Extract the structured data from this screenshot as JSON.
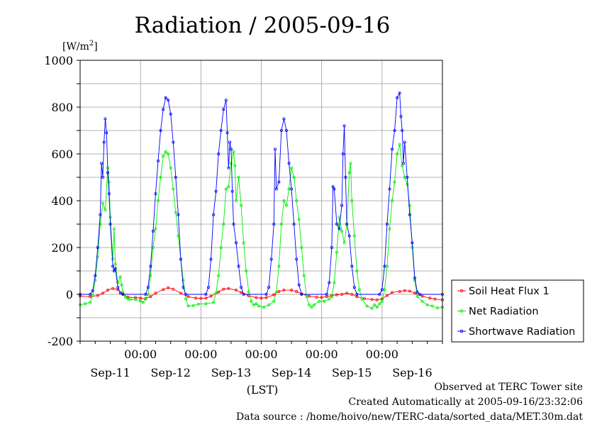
{
  "chart_data": {
    "type": "line",
    "title": "Radiation / 2005-09-16",
    "unit_label": "[W/m2]",
    "unit_base": "[W/m",
    "unit_sup": "2",
    "unit_close": "]",
    "xlabel": "(LST)",
    "ylim": [
      -200,
      1000
    ],
    "yticks": [
      -200,
      0,
      200,
      400,
      600,
      800,
      1000
    ],
    "xlim": [
      0,
      144
    ],
    "time_ticks": [
      {
        "x": 24,
        "time": "00:00"
      },
      {
        "x": 48,
        "time": "00:00"
      },
      {
        "x": 72,
        "time": "00:00"
      },
      {
        "x": 96,
        "time": "00:00"
      },
      {
        "x": 120,
        "time": "00:00"
      }
    ],
    "date_labels": [
      {
        "x": 12,
        "label": "Sep-11"
      },
      {
        "x": 36,
        "label": "Sep-12"
      },
      {
        "x": 60,
        "label": "Sep-13"
      },
      {
        "x": 84,
        "label": "Sep-14"
      },
      {
        "x": 108,
        "label": "Sep-15"
      },
      {
        "x": 132,
        "label": "Sep-16"
      }
    ],
    "grid": true,
    "legend_position": "right",
    "series": [
      {
        "name": "Soil Heat Flux 1",
        "color": "#ff0000",
        "points": [
          [
            0,
            -8
          ],
          [
            4,
            -10
          ],
          [
            7,
            -5
          ],
          [
            9,
            5
          ],
          [
            11,
            18
          ],
          [
            13,
            25
          ],
          [
            15,
            20
          ],
          [
            17,
            2
          ],
          [
            19,
            -12
          ],
          [
            22,
            -14
          ],
          [
            24,
            -16
          ],
          [
            26,
            -18
          ],
          [
            28,
            -10
          ],
          [
            30,
            5
          ],
          [
            33,
            20
          ],
          [
            35,
            28
          ],
          [
            37,
            22
          ],
          [
            40,
            5
          ],
          [
            43,
            -10
          ],
          [
            46,
            -16
          ],
          [
            48,
            -17
          ],
          [
            50,
            -16
          ],
          [
            52,
            -8
          ],
          [
            55,
            10
          ],
          [
            57,
            22
          ],
          [
            59,
            25
          ],
          [
            62,
            18
          ],
          [
            64,
            8
          ],
          [
            67,
            -6
          ],
          [
            70,
            -14
          ],
          [
            72,
            -16
          ],
          [
            74,
            -14
          ],
          [
            77,
            -2
          ],
          [
            79,
            12
          ],
          [
            81,
            18
          ],
          [
            84,
            18
          ],
          [
            86,
            12
          ],
          [
            88,
            2
          ],
          [
            91,
            -8
          ],
          [
            94,
            -12
          ],
          [
            96,
            -13
          ],
          [
            98,
            -10
          ],
          [
            100,
            -5
          ],
          [
            102,
            -2
          ],
          [
            104,
            0
          ],
          [
            106,
            5
          ],
          [
            108,
            0
          ],
          [
            110,
            -10
          ],
          [
            113,
            -18
          ],
          [
            116,
            -22
          ],
          [
            118,
            -24
          ],
          [
            120,
            -20
          ],
          [
            122,
            -5
          ],
          [
            124,
            8
          ],
          [
            127,
            12
          ],
          [
            129,
            16
          ],
          [
            131,
            14
          ],
          [
            133,
            5
          ],
          [
            136,
            -8
          ],
          [
            139,
            -16
          ],
          [
            141,
            -20
          ],
          [
            144,
            -24
          ]
        ]
      },
      {
        "name": "Net Radiation",
        "color": "#00ee00",
        "points": [
          [
            0,
            -45
          ],
          [
            2,
            -40
          ],
          [
            4,
            -35
          ],
          [
            5,
            -5
          ],
          [
            6,
            60
          ],
          [
            7,
            160
          ],
          [
            8,
            300
          ],
          [
            9,
            390
          ],
          [
            10,
            360
          ],
          [
            11,
            540
          ],
          [
            11.5,
            480
          ],
          [
            12,
            330
          ],
          [
            13,
            150
          ],
          [
            13.5,
            280
          ],
          [
            14,
            130
          ],
          [
            15,
            50
          ],
          [
            16,
            75
          ],
          [
            16.5,
            40
          ],
          [
            17,
            10
          ],
          [
            18,
            -12
          ],
          [
            19,
            -20
          ],
          [
            20,
            -22
          ],
          [
            22,
            -22
          ],
          [
            24,
            -28
          ],
          [
            25,
            -35
          ],
          [
            26,
            -20
          ],
          [
            27,
            0
          ],
          [
            28,
            80
          ],
          [
            29,
            200
          ],
          [
            30,
            280
          ],
          [
            31,
            400
          ],
          [
            32,
            500
          ],
          [
            33,
            590
          ],
          [
            34,
            610
          ],
          [
            35,
            600
          ],
          [
            36,
            540
          ],
          [
            37,
            450
          ],
          [
            38,
            350
          ],
          [
            39,
            250
          ],
          [
            40,
            150
          ],
          [
            41,
            60
          ],
          [
            42,
            -20
          ],
          [
            43,
            -50
          ],
          [
            45,
            -48
          ],
          [
            47,
            -42
          ],
          [
            50,
            -40
          ],
          [
            53,
            -35
          ],
          [
            54,
            5
          ],
          [
            55,
            80
          ],
          [
            56,
            200
          ],
          [
            57,
            300
          ],
          [
            58,
            450
          ],
          [
            59,
            460
          ],
          [
            60,
            560
          ],
          [
            61,
            610
          ],
          [
            61.5,
            550
          ],
          [
            62,
            400
          ],
          [
            63,
            500
          ],
          [
            64,
            380
          ],
          [
            65,
            220
          ],
          [
            66,
            100
          ],
          [
            67,
            10
          ],
          [
            68,
            -30
          ],
          [
            69,
            -45
          ],
          [
            70,
            -40
          ],
          [
            71,
            -50
          ],
          [
            73,
            -55
          ],
          [
            75,
            -45
          ],
          [
            77,
            -30
          ],
          [
            78,
            10
          ],
          [
            79,
            120
          ],
          [
            80,
            300
          ],
          [
            81,
            400
          ],
          [
            82,
            380
          ],
          [
            83,
            450
          ],
          [
            84,
            540
          ],
          [
            85,
            500
          ],
          [
            86,
            400
          ],
          [
            87,
            320
          ],
          [
            88,
            200
          ],
          [
            89,
            80
          ],
          [
            90,
            -10
          ],
          [
            91,
            -45
          ],
          [
            92,
            -55
          ],
          [
            93,
            -45
          ],
          [
            95,
            -30
          ],
          [
            97,
            -30
          ],
          [
            99,
            -20
          ],
          [
            100,
            -10
          ],
          [
            101,
            50
          ],
          [
            102,
            180
          ],
          [
            103,
            330
          ],
          [
            104,
            270
          ],
          [
            105,
            220
          ],
          [
            106,
            300
          ],
          [
            107,
            520
          ],
          [
            107.5,
            560
          ],
          [
            108,
            400
          ],
          [
            109,
            250
          ],
          [
            110,
            100
          ],
          [
            111,
            20
          ],
          [
            112,
            -20
          ],
          [
            114,
            -50
          ],
          [
            116,
            -60
          ],
          [
            117,
            -45
          ],
          [
            118,
            -55
          ],
          [
            119,
            -40
          ],
          [
            120,
            -30
          ],
          [
            121,
            20
          ],
          [
            122,
            120
          ],
          [
            123,
            280
          ],
          [
            124,
            400
          ],
          [
            125,
            480
          ],
          [
            126,
            600
          ],
          [
            127,
            640
          ],
          [
            128,
            550
          ],
          [
            129,
            500
          ],
          [
            130,
            470
          ],
          [
            131,
            380
          ],
          [
            132,
            200
          ],
          [
            133,
            60
          ],
          [
            134,
            -10
          ],
          [
            136,
            -30
          ],
          [
            138,
            -45
          ],
          [
            140,
            -50
          ],
          [
            142,
            -58
          ],
          [
            144,
            -55
          ]
        ]
      },
      {
        "name": "Shortwave Radiation",
        "color": "#0000ff",
        "points": [
          [
            0,
            0
          ],
          [
            4,
            0
          ],
          [
            5,
            15
          ],
          [
            6,
            80
          ],
          [
            7,
            200
          ],
          [
            8,
            340
          ],
          [
            8.5,
            560
          ],
          [
            9,
            500
          ],
          [
            9.5,
            650
          ],
          [
            10,
            750
          ],
          [
            10.5,
            690
          ],
          [
            11,
            520
          ],
          [
            11.5,
            430
          ],
          [
            12,
            300
          ],
          [
            13,
            120
          ],
          [
            13.5,
            100
          ],
          [
            14,
            110
          ],
          [
            15,
            30
          ],
          [
            16,
            5
          ],
          [
            17,
            0
          ],
          [
            26,
            0
          ],
          [
            27,
            30
          ],
          [
            28,
            120
          ],
          [
            29,
            270
          ],
          [
            30,
            430
          ],
          [
            31,
            570
          ],
          [
            32,
            700
          ],
          [
            33,
            790
          ],
          [
            34,
            840
          ],
          [
            35,
            830
          ],
          [
            36,
            770
          ],
          [
            37,
            650
          ],
          [
            38,
            500
          ],
          [
            39,
            340
          ],
          [
            40,
            150
          ],
          [
            41,
            30
          ],
          [
            42,
            0
          ],
          [
            50,
            0
          ],
          [
            51,
            30
          ],
          [
            52,
            150
          ],
          [
            53,
            340
          ],
          [
            54,
            440
          ],
          [
            55,
            600
          ],
          [
            56,
            700
          ],
          [
            57,
            790
          ],
          [
            58,
            830
          ],
          [
            58.5,
            690
          ],
          [
            59,
            540
          ],
          [
            59.5,
            650
          ],
          [
            60,
            620
          ],
          [
            60.5,
            440
          ],
          [
            61,
            300
          ],
          [
            62,
            220
          ],
          [
            63,
            120
          ],
          [
            64,
            30
          ],
          [
            65,
            0
          ],
          [
            74,
            0
          ],
          [
            75,
            30
          ],
          [
            76,
            150
          ],
          [
            77,
            300
          ],
          [
            77.5,
            620
          ],
          [
            78,
            450
          ],
          [
            79,
            480
          ],
          [
            80,
            700
          ],
          [
            81,
            750
          ],
          [
            82,
            700
          ],
          [
            83,
            560
          ],
          [
            84,
            450
          ],
          [
            85,
            300
          ],
          [
            86,
            150
          ],
          [
            87,
            40
          ],
          [
            88,
            0
          ],
          [
            98,
            0
          ],
          [
            99,
            50
          ],
          [
            100,
            200
          ],
          [
            100.5,
            460
          ],
          [
            101,
            450
          ],
          [
            102,
            300
          ],
          [
            103,
            280
          ],
          [
            104,
            380
          ],
          [
            104.5,
            600
          ],
          [
            105,
            720
          ],
          [
            105.5,
            500
          ],
          [
            106,
            300
          ],
          [
            107,
            250
          ],
          [
            108,
            120
          ],
          [
            109,
            30
          ],
          [
            110,
            0
          ],
          [
            119,
            0
          ],
          [
            120,
            20
          ],
          [
            121,
            120
          ],
          [
            122,
            300
          ],
          [
            123,
            450
          ],
          [
            124,
            620
          ],
          [
            125,
            700
          ],
          [
            126,
            840
          ],
          [
            127,
            860
          ],
          [
            127.5,
            760
          ],
          [
            128,
            700
          ],
          [
            128.5,
            560
          ],
          [
            129,
            650
          ],
          [
            130,
            500
          ],
          [
            131,
            340
          ],
          [
            132,
            220
          ],
          [
            133,
            70
          ],
          [
            134,
            10
          ],
          [
            135,
            0
          ],
          [
            144,
            0
          ]
        ]
      }
    ]
  },
  "footer": {
    "observed": "Observed at TERC Tower site",
    "created": "Created Automatically at 2005-09-16/23:32:06",
    "source": "Data source : /home/hoivo/new/TERC-data/sorted_data/MET.30m.dat"
  }
}
